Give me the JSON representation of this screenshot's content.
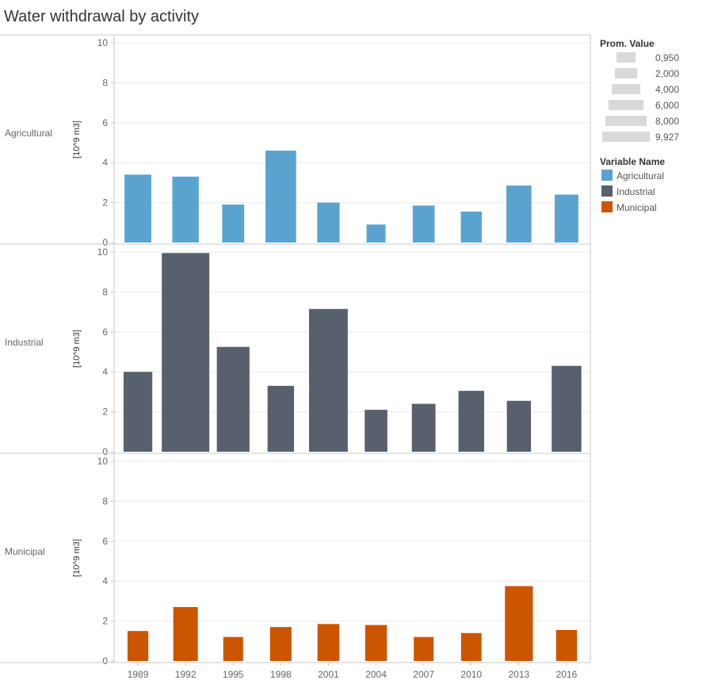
{
  "chart_data": {
    "type": "bar",
    "title": "Water withdrawal by activity",
    "categories": [
      "1989",
      "1992",
      "1995",
      "1998",
      "2001",
      "2004",
      "2007",
      "2010",
      "2013",
      "2016"
    ],
    "ylabel": "[10^9 m3]",
    "ylim": [
      0,
      10
    ],
    "yticks": [
      "0",
      "2",
      "4",
      "6",
      "8",
      "10"
    ],
    "grid": true,
    "series": [
      {
        "name": "Agricultural",
        "color": "#5ba3cf",
        "values": [
          3.4,
          3.3,
          1.9,
          4.6,
          2.0,
          0.9,
          1.85,
          1.55,
          2.85,
          2.4
        ]
      },
      {
        "name": "Industrial",
        "color": "#58606e",
        "values": [
          4.0,
          9.95,
          5.25,
          3.3,
          7.15,
          2.1,
          2.4,
          3.05,
          2.55,
          4.3
        ]
      },
      {
        "name": "Municipal",
        "color": "#cc5500",
        "values": [
          1.5,
          2.7,
          1.2,
          1.7,
          1.85,
          1.8,
          1.2,
          1.4,
          3.75,
          1.55
        ]
      }
    ],
    "size_legend": {
      "title": "Prom. Value",
      "values": [
        0.95,
        2.0,
        4.0,
        6.0,
        8.0,
        9.927
      ],
      "labels": [
        "0,950",
        "2,000",
        "4,000",
        "6,000",
        "8,000",
        "9,927"
      ],
      "color": "#d9d9d9"
    },
    "color_legend": {
      "title": "Variable Name",
      "placement": "right"
    }
  }
}
